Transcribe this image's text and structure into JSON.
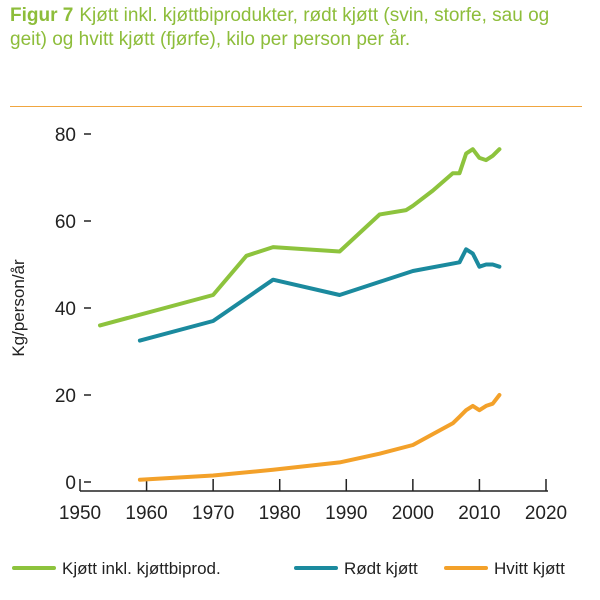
{
  "figure": {
    "label": "Figur 7",
    "caption": "Kjøtt inkl. kjøttbiprodukter, rødt kjøtt (svin, storfe, sau og geit) og hvitt kjøtt (fjørfe), kilo per person per år."
  },
  "colors": {
    "title": "#8dbd3a",
    "rule": "#f0a640",
    "axis": "#222222"
  },
  "chart_data": {
    "type": "line",
    "title": "Kjøtt inkl. kjøttbiprodukter, rødt kjøtt (svin, storfe, sau og geit) og hvitt kjøtt (fjørfe), kilo per person per år.",
    "xlabel": "",
    "ylabel": "Kg/person/år",
    "xlim": [
      1950,
      2020
    ],
    "ylim": [
      0,
      80
    ],
    "xticks": [
      1950,
      1960,
      1970,
      1980,
      1990,
      2000,
      2010,
      2020
    ],
    "yticks": [
      0,
      20,
      40,
      60,
      80
    ],
    "grid": false,
    "legend_position": "bottom",
    "series": [
      {
        "name": "Kjøtt inkl. kjøttbiprod.",
        "color": "#8dc33d",
        "x": [
          1953,
          1970,
          1975,
          1979,
          1989,
          1995,
          1999,
          2000,
          2003,
          2006,
          2007,
          2008,
          2009,
          2010,
          2011,
          2012,
          2013
        ],
        "y": [
          36,
          43,
          52,
          54,
          53,
          61.5,
          62.5,
          63.5,
          67,
          71,
          71,
          75.5,
          76.5,
          74.5,
          74,
          75,
          76.5
        ]
      },
      {
        "name": "Rødt kjøtt",
        "color": "#1b8a9e",
        "x": [
          1959,
          1970,
          1979,
          1989,
          1995,
          2000,
          2007,
          2008,
          2009,
          2010,
          2011,
          2012,
          2013
        ],
        "y": [
          32.5,
          37,
          46.5,
          43,
          46,
          48.5,
          50.5,
          53.5,
          52.5,
          49.5,
          50,
          50,
          49.5
        ]
      },
      {
        "name": "Hvitt kjøtt",
        "color": "#f3a12a",
        "x": [
          1959,
          1970,
          1979,
          1989,
          1995,
          2000,
          2003,
          2006,
          2007,
          2008,
          2009,
          2010,
          2011,
          2012,
          2013
        ],
        "y": [
          0.5,
          1.5,
          2.8,
          4.5,
          6.5,
          8.5,
          11,
          13.5,
          15,
          16.5,
          17.5,
          16.5,
          17.5,
          18,
          20
        ]
      }
    ]
  }
}
